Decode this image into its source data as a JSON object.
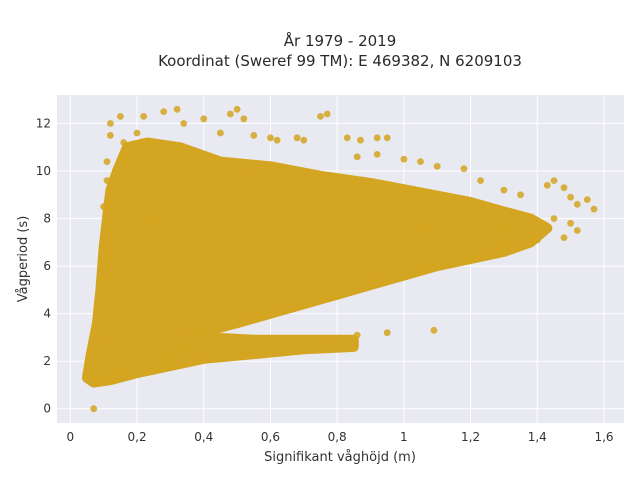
{
  "chart_data": {
    "type": "scatter",
    "title_line1": "År 1979 - 2019",
    "title_line2": "Koordinat (Sweref 99 TM): E 469382, N 6209103",
    "xlabel": "Signifikant våghöjd (m)",
    "ylabel": "Vågperiod (s)",
    "xlim": [
      -0.04,
      1.66
    ],
    "ylim": [
      -0.6,
      13.2
    ],
    "x_ticks": [
      {
        "value": 0,
        "label": "0"
      },
      {
        "value": 0.2,
        "label": "0,2"
      },
      {
        "value": 0.4,
        "label": "0,4"
      },
      {
        "value": 0.6,
        "label": "0,6"
      },
      {
        "value": 0.8,
        "label": "0,8"
      },
      {
        "value": 1.0,
        "label": "1"
      },
      {
        "value": 1.2,
        "label": "1,2"
      },
      {
        "value": 1.4,
        "label": "1,4"
      },
      {
        "value": 1.6,
        "label": "1,6"
      }
    ],
    "y_ticks": [
      {
        "value": 0,
        "label": "0"
      },
      {
        "value": 2,
        "label": "2"
      },
      {
        "value": 4,
        "label": "4"
      },
      {
        "value": 6,
        "label": "6"
      },
      {
        "value": 8,
        "label": "8"
      },
      {
        "value": 10,
        "label": "10"
      },
      {
        "value": 12,
        "label": "12"
      }
    ],
    "grid": true,
    "marker_color": "#d4a520",
    "plot_background": "#e9e9f2",
    "series": [
      {
        "points": [
          [
            0.07,
            0.0
          ],
          [
            0.06,
            1.3
          ],
          [
            0.08,
            1.2
          ],
          [
            0.1,
            1.3
          ],
          [
            0.12,
            1.5
          ],
          [
            0.15,
            1.6
          ],
          [
            0.08,
            2.0
          ],
          [
            0.1,
            2.8
          ],
          [
            0.1,
            4.0
          ],
          [
            0.1,
            5.5
          ],
          [
            0.1,
            7.0
          ],
          [
            0.1,
            8.5
          ],
          [
            0.11,
            9.6
          ],
          [
            0.11,
            10.4
          ],
          [
            0.12,
            11.5
          ],
          [
            0.12,
            12.0
          ],
          [
            0.15,
            12.3
          ],
          [
            0.16,
            11.2
          ],
          [
            0.2,
            11.6
          ],
          [
            0.22,
            12.3
          ],
          [
            0.28,
            12.5
          ],
          [
            0.32,
            12.6
          ],
          [
            0.34,
            12.0
          ],
          [
            0.4,
            12.2
          ],
          [
            0.45,
            11.6
          ],
          [
            0.48,
            12.4
          ],
          [
            0.5,
            12.6
          ],
          [
            0.52,
            12.2
          ],
          [
            0.55,
            11.5
          ],
          [
            0.6,
            11.4
          ],
          [
            0.62,
            11.3
          ],
          [
            0.68,
            11.4
          ],
          [
            0.7,
            11.3
          ],
          [
            0.75,
            12.3
          ],
          [
            0.77,
            12.4
          ],
          [
            0.83,
            11.4
          ],
          [
            0.87,
            11.3
          ],
          [
            0.92,
            11.4
          ],
          [
            0.95,
            11.4
          ],
          [
            0.86,
            10.6
          ],
          [
            0.92,
            10.7
          ],
          [
            1.0,
            10.5
          ],
          [
            1.05,
            10.4
          ],
          [
            1.1,
            10.2
          ],
          [
            1.18,
            10.1
          ],
          [
            1.23,
            9.6
          ],
          [
            1.3,
            9.2
          ],
          [
            1.35,
            9.0
          ],
          [
            1.43,
            9.4
          ],
          [
            1.45,
            9.6
          ],
          [
            1.48,
            9.3
          ],
          [
            1.5,
            8.9
          ],
          [
            1.52,
            8.6
          ],
          [
            1.55,
            8.8
          ],
          [
            1.57,
            8.4
          ],
          [
            1.45,
            8.0
          ],
          [
            1.5,
            7.8
          ],
          [
            1.52,
            7.5
          ],
          [
            1.48,
            7.2
          ],
          [
            1.4,
            7.1
          ],
          [
            1.35,
            6.8
          ],
          [
            1.3,
            6.9
          ],
          [
            1.25,
            6.7
          ],
          [
            1.2,
            6.3
          ],
          [
            1.1,
            6.0
          ],
          [
            1.05,
            5.9
          ],
          [
            1.0,
            5.8
          ],
          [
            0.92,
            5.5
          ],
          [
            0.85,
            5.0
          ],
          [
            0.78,
            4.7
          ],
          [
            0.7,
            4.4
          ],
          [
            0.62,
            4.1
          ],
          [
            0.55,
            3.9
          ],
          [
            0.48,
            3.6
          ],
          [
            0.4,
            3.3
          ],
          [
            0.32,
            3.2
          ],
          [
            0.25,
            3.0
          ],
          [
            0.2,
            3.0
          ],
          [
            0.35,
            2.6
          ],
          [
            0.45,
            2.4
          ],
          [
            0.55,
            2.5
          ],
          [
            0.65,
            2.8
          ],
          [
            0.75,
            2.8
          ],
          [
            0.8,
            2.9
          ],
          [
            0.86,
            3.1
          ],
          [
            0.95,
            3.2
          ],
          [
            1.09,
            3.3
          ],
          [
            0.3,
            2.2
          ],
          [
            0.4,
            2.3
          ],
          [
            0.2,
            1.8
          ],
          [
            0.3,
            1.9
          ],
          [
            0.15,
            1.5
          ],
          [
            0.25,
            1.7
          ],
          [
            0.6,
            8.4
          ],
          [
            0.8,
            8.0
          ],
          [
            0.9,
            7.7
          ],
          [
            1.05,
            7.6
          ],
          [
            1.18,
            7.4
          ],
          [
            1.3,
            7.6
          ],
          [
            0.7,
            9.2
          ],
          [
            0.9,
            9.4
          ],
          [
            0.55,
            10.0
          ],
          [
            0.3,
            10.5
          ],
          [
            0.4,
            9.5
          ],
          [
            0.25,
            8.0
          ],
          [
            0.2,
            6.0
          ],
          [
            0.3,
            4.5
          ],
          [
            0.5,
            6.5
          ]
        ]
      }
    ]
  }
}
